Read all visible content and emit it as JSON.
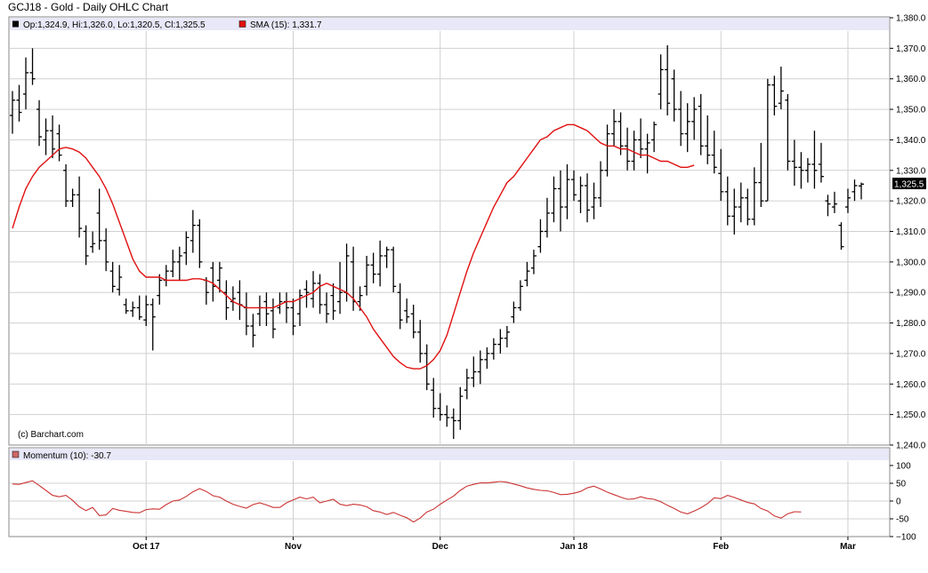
{
  "chart_title": "GCJ18 - Gold - Daily OHLC Chart",
  "ohlc_legend": "Op:1,324.9, Hi:1,326.0, Lo:1,320.5, Cl:1,325.5",
  "sma_legend": "SMA (15): 1,331.7",
  "momentum_legend": "Momentum (10): -30.7",
  "copyright": "(c) Barchart.com",
  "last_price_tag": "1,325.5",
  "colors": {
    "bars": "#000000",
    "sma": "#e01010",
    "momentum": "#cc3333",
    "panel_header": "#e8e8f8",
    "grid": "#cccccc"
  },
  "chart_data": {
    "type": "ohlc",
    "price_axis": {
      "ylim": [
        1240,
        1380
      ],
      "ticks": [
        1240,
        1250,
        1260,
        1270,
        1280,
        1290,
        1300,
        1310,
        1320,
        1330,
        1340,
        1350,
        1360,
        1370,
        1380
      ],
      "tick_labels": [
        "1,240.0",
        "1,250.0",
        "1,260.0",
        "1,270.0",
        "1,280.0",
        "1,290.0",
        "1,300.0",
        "1,310.0",
        "1,320.0",
        "1,330.0",
        "1,340.0",
        "1,350.0",
        "1,360.0",
        "1,370.0",
        "1,380.0"
      ]
    },
    "momentum_axis": {
      "ylim": [
        -100,
        100
      ],
      "ticks": [
        100,
        50,
        0,
        -50,
        -100
      ],
      "tick_labels": [
        "100",
        "50",
        "0",
        "-50",
        "−100"
      ]
    },
    "x_labels": [
      {
        "label": "Oct 17",
        "index": 20
      },
      {
        "label": "Nov",
        "index": 42
      },
      {
        "label": "Dec",
        "index": 64
      },
      {
        "label": "Jan 18",
        "index": 84
      },
      {
        "label": "Feb",
        "index": 106
      },
      {
        "label": "Mar",
        "index": 125
      }
    ],
    "bars": [
      {
        "o": 1348,
        "h": 1356,
        "l": 1342,
        "c": 1353
      },
      {
        "o": 1353,
        "h": 1358,
        "l": 1346,
        "c": 1349
      },
      {
        "o": 1355,
        "h": 1367,
        "l": 1350,
        "c": 1362
      },
      {
        "o": 1362,
        "h": 1370,
        "l": 1358,
        "c": 1360
      },
      {
        "o": 1350,
        "h": 1353,
        "l": 1338,
        "c": 1341
      },
      {
        "o": 1340,
        "h": 1347,
        "l": 1335,
        "c": 1343
      },
      {
        "o": 1343,
        "h": 1348,
        "l": 1334,
        "c": 1337
      },
      {
        "o": 1342,
        "h": 1345,
        "l": 1333,
        "c": 1335
      },
      {
        "o": 1330,
        "h": 1332,
        "l": 1318,
        "c": 1320
      },
      {
        "o": 1320,
        "h": 1324,
        "l": 1318,
        "c": 1322
      },
      {
        "o": 1322,
        "h": 1328,
        "l": 1308,
        "c": 1311
      },
      {
        "o": 1310,
        "h": 1312,
        "l": 1299,
        "c": 1302
      },
      {
        "o": 1305,
        "h": 1310,
        "l": 1303,
        "c": 1306
      },
      {
        "o": 1316,
        "h": 1324,
        "l": 1304,
        "c": 1307
      },
      {
        "o": 1307,
        "h": 1311,
        "l": 1297,
        "c": 1300
      },
      {
        "o": 1297,
        "h": 1300,
        "l": 1290,
        "c": 1292
      },
      {
        "o": 1291,
        "h": 1299,
        "l": 1289,
        "c": 1295
      },
      {
        "o": 1286,
        "h": 1288,
        "l": 1283,
        "c": 1284
      },
      {
        "o": 1284,
        "h": 1287,
        "l": 1282,
        "c": 1285
      },
      {
        "o": 1285,
        "h": 1289,
        "l": 1281,
        "c": 1282
      },
      {
        "o": 1281,
        "h": 1289,
        "l": 1279,
        "c": 1286
      },
      {
        "o": 1286,
        "h": 1288,
        "l": 1271,
        "c": 1282
      },
      {
        "o": 1289,
        "h": 1296,
        "l": 1286,
        "c": 1294
      },
      {
        "o": 1294,
        "h": 1299,
        "l": 1292,
        "c": 1297
      },
      {
        "o": 1297,
        "h": 1304,
        "l": 1295,
        "c": 1300
      },
      {
        "o": 1300,
        "h": 1305,
        "l": 1294,
        "c": 1302
      },
      {
        "o": 1303,
        "h": 1310,
        "l": 1299,
        "c": 1308
      },
      {
        "o": 1307,
        "h": 1317,
        "l": 1303,
        "c": 1312
      },
      {
        "o": 1312,
        "h": 1314,
        "l": 1298,
        "c": 1300
      },
      {
        "o": 1294,
        "h": 1295,
        "l": 1286,
        "c": 1290
      },
      {
        "o": 1298,
        "h": 1300,
        "l": 1287,
        "c": 1292
      },
      {
        "o": 1294,
        "h": 1300,
        "l": 1290,
        "c": 1298
      },
      {
        "o": 1290,
        "h": 1294,
        "l": 1281,
        "c": 1285
      },
      {
        "o": 1287,
        "h": 1292,
        "l": 1284,
        "c": 1288
      },
      {
        "o": 1290,
        "h": 1294,
        "l": 1281,
        "c": 1286
      },
      {
        "o": 1285,
        "h": 1290,
        "l": 1276,
        "c": 1279
      },
      {
        "o": 1279,
        "h": 1283,
        "l": 1272,
        "c": 1276
      },
      {
        "o": 1283,
        "h": 1289,
        "l": 1279,
        "c": 1285
      },
      {
        "o": 1287,
        "h": 1290,
        "l": 1279,
        "c": 1283
      },
      {
        "o": 1284,
        "h": 1288,
        "l": 1275,
        "c": 1278
      },
      {
        "o": 1285,
        "h": 1290,
        "l": 1283,
        "c": 1287
      },
      {
        "o": 1287,
        "h": 1290,
        "l": 1280,
        "c": 1285
      },
      {
        "o": 1285,
        "h": 1288,
        "l": 1276,
        "c": 1279
      },
      {
        "o": 1283,
        "h": 1291,
        "l": 1279,
        "c": 1289
      },
      {
        "o": 1291,
        "h": 1294,
        "l": 1285,
        "c": 1290
      },
      {
        "o": 1288,
        "h": 1297,
        "l": 1285,
        "c": 1293
      },
      {
        "o": 1293,
        "h": 1296,
        "l": 1283,
        "c": 1286
      },
      {
        "o": 1286,
        "h": 1290,
        "l": 1280,
        "c": 1283
      },
      {
        "o": 1289,
        "h": 1293,
        "l": 1281,
        "c": 1284
      },
      {
        "o": 1287,
        "h": 1300,
        "l": 1283,
        "c": 1290
      },
      {
        "o": 1290,
        "h": 1306,
        "l": 1287,
        "c": 1302
      },
      {
        "o": 1300,
        "h": 1305,
        "l": 1284,
        "c": 1287
      },
      {
        "o": 1287,
        "h": 1292,
        "l": 1284,
        "c": 1289
      },
      {
        "o": 1292,
        "h": 1302,
        "l": 1289,
        "c": 1299
      },
      {
        "o": 1299,
        "h": 1303,
        "l": 1293,
        "c": 1296
      },
      {
        "o": 1296,
        "h": 1307,
        "l": 1292,
        "c": 1302
      },
      {
        "o": 1302,
        "h": 1305,
        "l": 1298,
        "c": 1304
      },
      {
        "o": 1304,
        "h": 1305,
        "l": 1290,
        "c": 1292
      },
      {
        "o": 1290,
        "h": 1293,
        "l": 1278,
        "c": 1281
      },
      {
        "o": 1284,
        "h": 1288,
        "l": 1280,
        "c": 1282
      },
      {
        "o": 1283,
        "h": 1286,
        "l": 1275,
        "c": 1277
      },
      {
        "o": 1277,
        "h": 1281,
        "l": 1267,
        "c": 1270
      },
      {
        "o": 1270,
        "h": 1273,
        "l": 1258,
        "c": 1260
      },
      {
        "o": 1258,
        "h": 1262,
        "l": 1249,
        "c": 1252
      },
      {
        "o": 1252,
        "h": 1257,
        "l": 1248,
        "c": 1250
      },
      {
        "o": 1250,
        "h": 1253,
        "l": 1246,
        "c": 1249
      },
      {
        "o": 1249,
        "h": 1252,
        "l": 1242,
        "c": 1248
      },
      {
        "o": 1248,
        "h": 1259,
        "l": 1245,
        "c": 1256
      },
      {
        "o": 1258,
        "h": 1265,
        "l": 1255,
        "c": 1262
      },
      {
        "o": 1262,
        "h": 1269,
        "l": 1259,
        "c": 1264
      },
      {
        "o": 1264,
        "h": 1271,
        "l": 1260,
        "c": 1268
      },
      {
        "o": 1268,
        "h": 1272,
        "l": 1265,
        "c": 1270
      },
      {
        "o": 1270,
        "h": 1275,
        "l": 1268,
        "c": 1273
      },
      {
        "o": 1273,
        "h": 1278,
        "l": 1270,
        "c": 1275
      },
      {
        "o": 1275,
        "h": 1279,
        "l": 1272,
        "c": 1277
      },
      {
        "o": 1282,
        "h": 1287,
        "l": 1280,
        "c": 1285
      },
      {
        "o": 1285,
        "h": 1294,
        "l": 1284,
        "c": 1292
      },
      {
        "o": 1294,
        "h": 1300,
        "l": 1292,
        "c": 1297
      },
      {
        "o": 1298,
        "h": 1304,
        "l": 1296,
        "c": 1302
      },
      {
        "o": 1305,
        "h": 1314,
        "l": 1303,
        "c": 1310
      },
      {
        "o": 1310,
        "h": 1321,
        "l": 1308,
        "c": 1316
      },
      {
        "o": 1316,
        "h": 1328,
        "l": 1313,
        "c": 1324
      },
      {
        "o": 1324,
        "h": 1330,
        "l": 1310,
        "c": 1318
      },
      {
        "o": 1318,
        "h": 1332,
        "l": 1314,
        "c": 1327
      },
      {
        "o": 1327,
        "h": 1330,
        "l": 1320,
        "c": 1322
      },
      {
        "o": 1320,
        "h": 1328,
        "l": 1316,
        "c": 1325
      },
      {
        "o": 1325,
        "h": 1329,
        "l": 1313,
        "c": 1317
      },
      {
        "o": 1318,
        "h": 1326,
        "l": 1314,
        "c": 1321
      },
      {
        "o": 1321,
        "h": 1333,
        "l": 1318,
        "c": 1330
      },
      {
        "o": 1330,
        "h": 1345,
        "l": 1328,
        "c": 1342
      },
      {
        "o": 1342,
        "h": 1350,
        "l": 1338,
        "c": 1346
      },
      {
        "o": 1346,
        "h": 1349,
        "l": 1335,
        "c": 1338
      },
      {
        "o": 1338,
        "h": 1344,
        "l": 1330,
        "c": 1333
      },
      {
        "o": 1333,
        "h": 1343,
        "l": 1330,
        "c": 1340
      },
      {
        "o": 1340,
        "h": 1347,
        "l": 1334,
        "c": 1337
      },
      {
        "o": 1337,
        "h": 1342,
        "l": 1329,
        "c": 1339
      },
      {
        "o": 1340,
        "h": 1346,
        "l": 1336,
        "c": 1345
      },
      {
        "o": 1355,
        "h": 1368,
        "l": 1350,
        "c": 1363
      },
      {
        "o": 1363,
        "h": 1371,
        "l": 1348,
        "c": 1352
      },
      {
        "o": 1360,
        "h": 1363,
        "l": 1346,
        "c": 1350
      },
      {
        "o": 1350,
        "h": 1356,
        "l": 1338,
        "c": 1342
      },
      {
        "o": 1342,
        "h": 1352,
        "l": 1336,
        "c": 1346
      },
      {
        "o": 1346,
        "h": 1354,
        "l": 1340,
        "c": 1350
      },
      {
        "o": 1351,
        "h": 1355,
        "l": 1335,
        "c": 1338
      },
      {
        "o": 1338,
        "h": 1348,
        "l": 1332,
        "c": 1335
      },
      {
        "o": 1335,
        "h": 1343,
        "l": 1329,
        "c": 1331
      },
      {
        "o": 1329,
        "h": 1337,
        "l": 1320,
        "c": 1323
      },
      {
        "o": 1323,
        "h": 1328,
        "l": 1312,
        "c": 1315
      },
      {
        "o": 1315,
        "h": 1324,
        "l": 1309,
        "c": 1318
      },
      {
        "o": 1318,
        "h": 1326,
        "l": 1313,
        "c": 1321
      },
      {
        "o": 1321,
        "h": 1324,
        "l": 1312,
        "c": 1314
      },
      {
        "o": 1314,
        "h": 1331,
        "l": 1312,
        "c": 1326
      },
      {
        "o": 1326,
        "h": 1339,
        "l": 1318,
        "c": 1320
      },
      {
        "o": 1320,
        "h": 1360,
        "l": 1320,
        "c": 1358
      },
      {
        "o": 1358,
        "h": 1361,
        "l": 1348,
        "c": 1351
      },
      {
        "o": 1352,
        "h": 1364,
        "l": 1350,
        "c": 1356
      },
      {
        "o": 1353,
        "h": 1355,
        "l": 1330,
        "c": 1333
      },
      {
        "o": 1333,
        "h": 1340,
        "l": 1325,
        "c": 1331
      },
      {
        "o": 1331,
        "h": 1336,
        "l": 1324,
        "c": 1330
      },
      {
        "o": 1330,
        "h": 1334,
        "l": 1326,
        "c": 1332
      },
      {
        "o": 1332,
        "h": 1343,
        "l": 1324,
        "c": 1330
      },
      {
        "o": 1332,
        "h": 1339,
        "l": 1326,
        "c": 1328
      },
      {
        "o": 1320,
        "h": 1322,
        "l": 1315,
        "c": 1319
      },
      {
        "o": 1318,
        "h": 1323,
        "l": 1316,
        "c": 1319
      },
      {
        "o": 1312,
        "h": 1313,
        "l": 1304,
        "c": 1305
      },
      {
        "o": 1318,
        "h": 1324,
        "l": 1316,
        "c": 1321
      },
      {
        "o": 1323,
        "h": 1327,
        "l": 1320,
        "c": 1325
      },
      {
        "o": 1324.9,
        "h": 1326,
        "l": 1320.5,
        "c": 1325.5
      }
    ],
    "sma": [
      1311,
      1318,
      1324,
      1328,
      1331,
      1333,
      1335,
      1337,
      1337.5,
      1337,
      1336,
      1334,
      1331,
      1328,
      1324,
      1319,
      1313,
      1307,
      1301,
      1297,
      1295,
      1295,
      1295,
      1294,
      1294,
      1294,
      1294,
      1294.5,
      1294.5,
      1294,
      1293,
      1291,
      1289,
      1287,
      1286,
      1285,
      1285,
      1285,
      1285,
      1285,
      1286,
      1287,
      1287,
      1288,
      1289,
      1290,
      1292,
      1293,
      1292,
      1291,
      1290,
      1288,
      1285,
      1282,
      1278,
      1275,
      1272,
      1269,
      1267,
      1265.5,
      1265,
      1265,
      1266,
      1268,
      1271,
      1276,
      1283,
      1290,
      1297,
      1303,
      1308,
      1313,
      1318,
      1322,
      1326,
      1328,
      1331,
      1334,
      1337,
      1340,
      1341,
      1343,
      1344,
      1345,
      1345,
      1344,
      1343,
      1341,
      1339,
      1338,
      1338,
      1337,
      1337,
      1336,
      1335,
      1335,
      1334,
      1333,
      1333,
      1332,
      1331,
      1331,
      1331.7
    ],
    "momentum": [
      48,
      47,
      52,
      57,
      44,
      30,
      16,
      12,
      16,
      2,
      -16,
      -27,
      -18,
      -41,
      -39,
      -21,
      -26,
      -29,
      -32,
      -33,
      -24,
      -22,
      -23,
      -10,
      0,
      3,
      13,
      26,
      35,
      27,
      15,
      11,
      0,
      -9,
      -15,
      -20,
      -10,
      -5,
      -11,
      -18,
      -18,
      -5,
      3,
      11,
      6,
      11,
      -5,
      0,
      5,
      -9,
      -13,
      -9,
      -11,
      -16,
      -27,
      -31,
      -38,
      -32,
      -40,
      -47,
      -59,
      -48,
      -31,
      -23,
      -9,
      3,
      14,
      30,
      42,
      47,
      51,
      51,
      53,
      55,
      53,
      48,
      43,
      37,
      33,
      30,
      29,
      24,
      18,
      19,
      22,
      27,
      37,
      42,
      34,
      25,
      18,
      11,
      5,
      6,
      12,
      7,
      5,
      -2,
      -12,
      -21,
      -31,
      -36,
      -28,
      -19,
      -7,
      9,
      7,
      16,
      10,
      3,
      -4,
      -8,
      -21,
      -28,
      -42,
      -48,
      -36,
      -30,
      -30.7
    ]
  }
}
